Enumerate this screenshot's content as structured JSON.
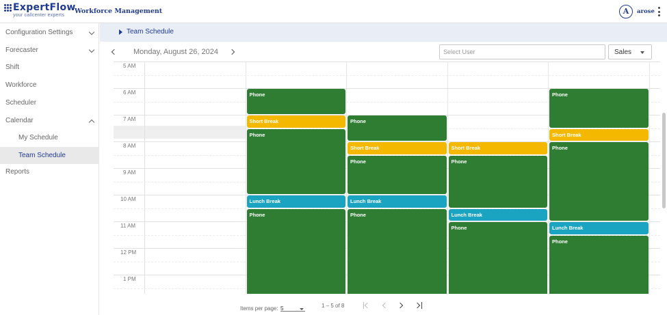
{
  "header": {
    "brand": "ExpertFlow",
    "tagline": "your callcenter experts",
    "app_title": "Workforce Management",
    "avatar_letter": "A",
    "username": "arose"
  },
  "sidebar": {
    "items": [
      {
        "label": "Configuration Settings",
        "expandable": true,
        "expanded": false
      },
      {
        "label": "Forecaster",
        "expandable": true,
        "expanded": false
      },
      {
        "label": "Shift"
      },
      {
        "label": "Workforce"
      },
      {
        "label": "Scheduler"
      },
      {
        "label": "Calendar",
        "expandable": true,
        "expanded": true
      },
      {
        "label": "My Schedule",
        "sub": true
      },
      {
        "label": "Team Schedule",
        "sub": true,
        "active": true
      },
      {
        "label": "Reports"
      }
    ]
  },
  "breadcrumb": "Team Schedule",
  "toolbar": {
    "date": "Monday, August 26, 2024",
    "user_placeholder": "Select User",
    "queue": "Sales"
  },
  "calendar": {
    "time_labels": [
      "5 AM",
      "6 AM",
      "7 AM",
      "8 AM",
      "9 AM",
      "10 AM",
      "11 AM",
      "12 PM",
      "1 PM"
    ],
    "first_hour": 5,
    "columns": 5,
    "events": [
      {
        "col": 1,
        "start": 6.0,
        "end": 7.0,
        "type": "phone",
        "label": "Phone"
      },
      {
        "col": 1,
        "start": 7.0,
        "end": 7.5,
        "type": "short",
        "label": "Short Break"
      },
      {
        "col": 1,
        "start": 7.5,
        "end": 10.0,
        "type": "phone",
        "label": "Phone"
      },
      {
        "col": 1,
        "start": 10.0,
        "end": 10.5,
        "type": "lunch",
        "label": "Lunch Break"
      },
      {
        "col": 1,
        "start": 10.5,
        "end": 14.0,
        "type": "phone",
        "label": "Phone"
      },
      {
        "col": 2,
        "start": 7.0,
        "end": 8.0,
        "type": "phone",
        "label": "Phone"
      },
      {
        "col": 2,
        "start": 8.0,
        "end": 8.5,
        "type": "short",
        "label": "Short Break"
      },
      {
        "col": 2,
        "start": 8.5,
        "end": 10.0,
        "type": "phone",
        "label": "Phone"
      },
      {
        "col": 2,
        "start": 10.0,
        "end": 10.5,
        "type": "lunch",
        "label": "Lunch Break"
      },
      {
        "col": 2,
        "start": 10.5,
        "end": 14.0,
        "type": "phone",
        "label": "Phone"
      },
      {
        "col": 3,
        "start": 8.0,
        "end": 8.5,
        "type": "short",
        "label": "Short Break"
      },
      {
        "col": 3,
        "start": 8.5,
        "end": 10.5,
        "type": "phone",
        "label": "Phone"
      },
      {
        "col": 3,
        "start": 10.5,
        "end": 11.0,
        "type": "lunch",
        "label": "Lunch Break"
      },
      {
        "col": 3,
        "start": 11.0,
        "end": 14.0,
        "type": "phone",
        "label": "Phone"
      },
      {
        "col": 4,
        "start": 6.0,
        "end": 7.5,
        "type": "phone",
        "label": "Phone"
      },
      {
        "col": 4,
        "start": 7.5,
        "end": 8.0,
        "type": "short",
        "label": "Short Break"
      },
      {
        "col": 4,
        "start": 8.0,
        "end": 11.0,
        "type": "phone",
        "label": "Phone"
      },
      {
        "col": 4,
        "start": 11.0,
        "end": 11.5,
        "type": "lunch",
        "label": "Lunch Break"
      },
      {
        "col": 4,
        "start": 11.5,
        "end": 14.0,
        "type": "phone",
        "label": "Phone"
      }
    ]
  },
  "paginator": {
    "items_per_page_label": "Items per page:",
    "page_size": "5",
    "range": "1 – 5 of 8"
  },
  "colors": {
    "brand": "#1f3a8f",
    "phone": "#2e7d32",
    "short_break": "#f5b800",
    "lunch_break": "#1aa4c2"
  }
}
